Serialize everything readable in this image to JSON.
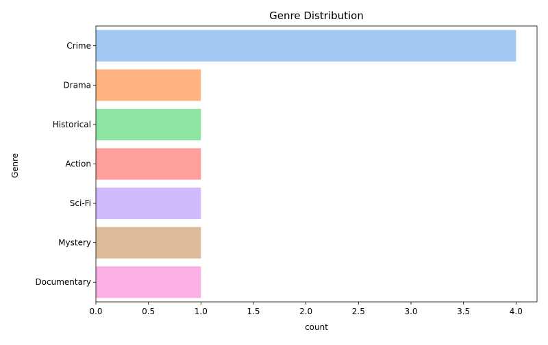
{
  "chart_data": {
    "type": "bar",
    "orientation": "horizontal",
    "title": "Genre Distribution",
    "xlabel": "count",
    "ylabel": "Genre",
    "categories": [
      "Crime",
      "Drama",
      "Historical",
      "Action",
      "Sci-Fi",
      "Mystery",
      "Documentary"
    ],
    "values": [
      4,
      1,
      1,
      1,
      1,
      1,
      1
    ],
    "xlim": [
      0,
      4.2
    ],
    "xticks": [
      "0.0",
      "0.5",
      "1.0",
      "1.5",
      "2.0",
      "2.5",
      "3.0",
      "3.5",
      "4.0"
    ],
    "grid": false,
    "legend": "none",
    "colors": [
      "#a1c9f4",
      "#ffb482",
      "#8de5a1",
      "#ff9f9b",
      "#d0bbff",
      "#debb9b",
      "#fab0e4"
    ]
  }
}
